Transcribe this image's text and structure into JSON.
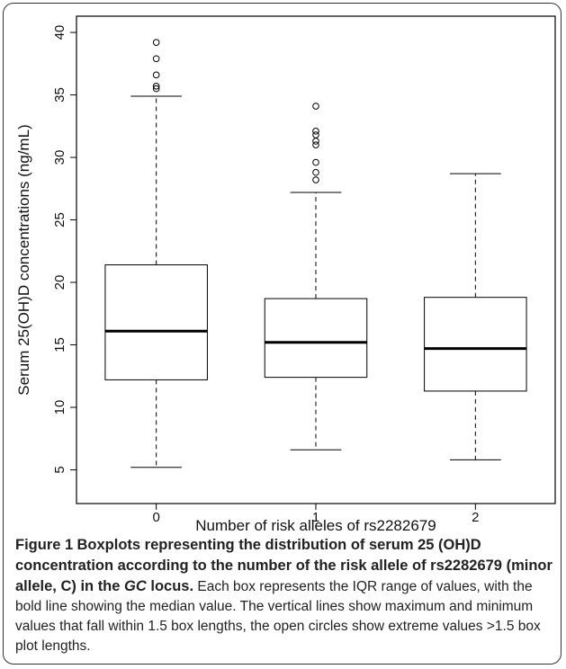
{
  "chart_data": {
    "type": "box",
    "x_label": "Number of risk alleles of rs2282679",
    "y_label": "Serum 25(OH)D concentrations (ng/mL)",
    "categories": [
      "0",
      "1",
      "2"
    ],
    "boxes": [
      {
        "whislo": 5.2,
        "q1": 12.2,
        "med": 16.1,
        "q3": 21.4,
        "whishi": 34.9,
        "fliers": [
          35.5,
          35.7,
          36.6,
          37.9,
          39.2
        ]
      },
      {
        "whislo": 6.6,
        "q1": 12.4,
        "med": 15.2,
        "q3": 18.7,
        "whishi": 27.2,
        "fliers": [
          28.2,
          28.8,
          29.6,
          31.0,
          31.3,
          31.8,
          32.1,
          34.1
        ]
      },
      {
        "whislo": 5.8,
        "q1": 11.3,
        "med": 14.7,
        "q3": 18.8,
        "whishi": 28.7,
        "fliers": []
      }
    ],
    "color": "#000000",
    "ylim": [
      2.3,
      41.3
    ],
    "yticks": [
      5,
      10,
      15,
      20,
      25,
      30,
      35,
      40
    ]
  },
  "caption": {
    "label": "Figure 1",
    "title_before": "Boxplots representing the distribution of serum 25 (OH)D concentration according to the number of the risk allele of rs2282679 (minor allele, C) in the ",
    "title_italic": "GC",
    "title_after": " locus.",
    "text": "Each box represents the IQR range of values, with the bold line showing the median value. The vertical lines show maximum and minimum values that fall within 1.5 box lengths, the open circles show extreme values >1.5 box plot lengths."
  }
}
